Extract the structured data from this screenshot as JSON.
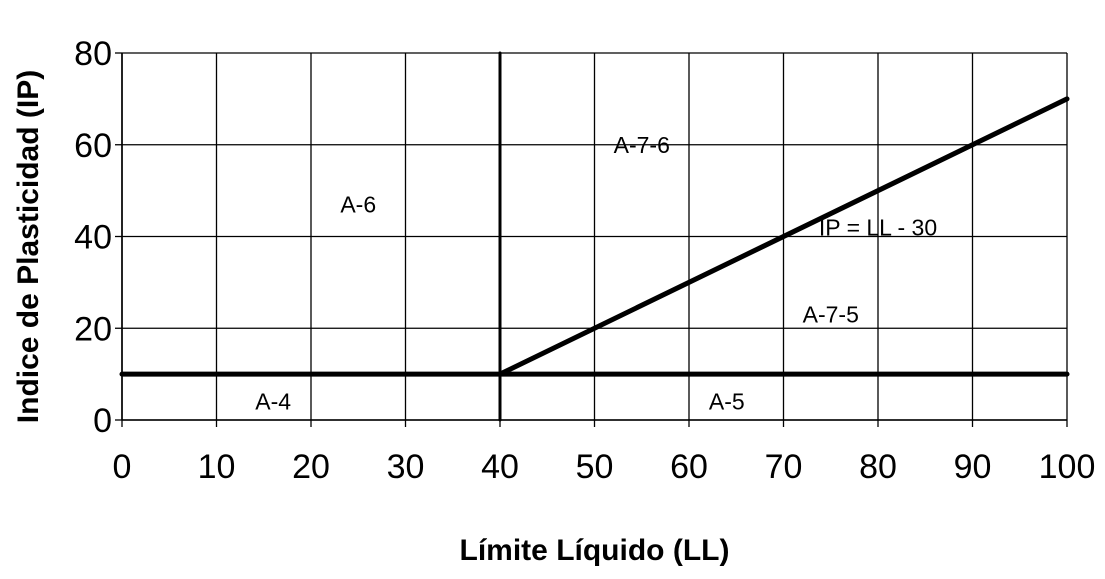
{
  "chart_data": {
    "type": "line",
    "title": "",
    "xlabel": "Límite Líquido (LL)",
    "ylabel": "Indice de Plasticidad (IP)",
    "xlim": [
      0,
      100
    ],
    "ylim": [
      0,
      80
    ],
    "grid": true,
    "x_ticks": [
      "0",
      "10",
      "20",
      "30",
      "40",
      "50",
      "60",
      "70",
      "80",
      "90",
      "100"
    ],
    "y_ticks": [
      "0",
      "20",
      "40",
      "60",
      "80"
    ],
    "boundaries": [
      {
        "name": "ip-10-line",
        "x": [
          0,
          100
        ],
        "y": [
          10,
          10
        ]
      },
      {
        "name": "ll-40-line",
        "x": [
          40,
          40
        ],
        "y": [
          0,
          80
        ]
      },
      {
        "name": "ip-ll-30-line",
        "x": [
          40,
          100
        ],
        "y": [
          10,
          70
        ]
      }
    ],
    "regions": [
      {
        "label": "A-4",
        "x": 16,
        "y": 4
      },
      {
        "label": "A-5",
        "x": 64,
        "y": 4
      },
      {
        "label": "A-6",
        "x": 25,
        "y": 47
      },
      {
        "label": "A-7-6",
        "x": 55,
        "y": 60
      },
      {
        "label": "A-7-5",
        "x": 75,
        "y": 23
      }
    ],
    "annotations": [
      {
        "text": "IP = LL - 30",
        "x": 80,
        "y": 42
      }
    ]
  }
}
